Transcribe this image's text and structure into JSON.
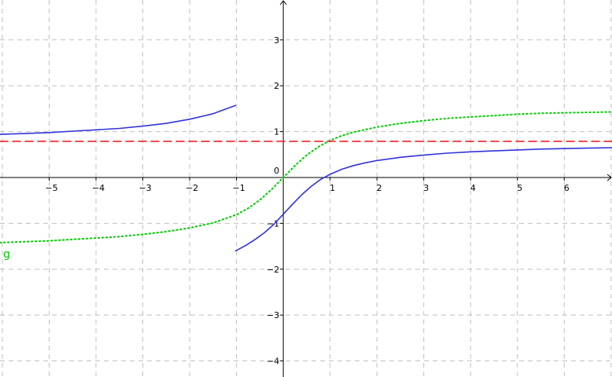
{
  "chart_data": {
    "type": "line",
    "title": "",
    "xlabel": "",
    "ylabel": "",
    "xlim": [
      -6.05,
      7.02
    ],
    "ylim": [
      -4.35,
      3.87
    ],
    "grid": true,
    "x_ticks": [
      -5,
      -4,
      -3,
      -2,
      -1,
      0,
      1,
      2,
      3,
      4,
      5,
      6
    ],
    "y_ticks": [
      -4,
      -3,
      -2,
      -1,
      1,
      2,
      3
    ],
    "x_tick_labels": [
      "−5",
      "−4",
      "−3",
      "−2",
      "−1",
      "0",
      "1",
      "2",
      "3",
      "4",
      "5",
      "6"
    ],
    "y_tick_labels": [
      "−4",
      "−3",
      "−2",
      "−1",
      "1",
      "2",
      "3"
    ],
    "origin_label": "0",
    "series": [
      {
        "style": "solid",
        "color": "#3333dd",
        "segments": [
          {
            "x": [
              -6.05,
              -5.5,
              -5,
              -4.5,
              -4,
              -3.5,
              -3,
              -2.5,
              -2,
              -1.5,
              -1.02
            ],
            "y": [
              0.94,
              0.96,
              0.98,
              1.01,
              1.04,
              1.07,
              1.12,
              1.18,
              1.27,
              1.39,
              1.57
            ]
          },
          {
            "x": [
              -1.02,
              -0.8,
              -0.6,
              -0.4,
              -0.2,
              0,
              0.2,
              0.4,
              0.6,
              0.8,
              1,
              1.25,
              1.5,
              1.75,
              2,
              2.5,
              3,
              3.5,
              4,
              4.5,
              5,
              5.5,
              6,
              6.5,
              7.02
            ],
            "y": [
              -1.6,
              -1.48,
              -1.35,
              -1.2,
              -1.02,
              -0.8,
              -0.58,
              -0.37,
              -0.19,
              -0.04,
              0.07,
              0.18,
              0.26,
              0.32,
              0.37,
              0.44,
              0.49,
              0.53,
              0.56,
              0.58,
              0.6,
              0.62,
              0.63,
              0.64,
              0.65
            ]
          }
        ]
      },
      {
        "name": "g",
        "style": "dotted",
        "color": "#00cc00",
        "label": "g",
        "segments": [
          {
            "x": [
              -6.05,
              -5.5,
              -5,
              -4.5,
              -4,
              -3.5,
              -3,
              -2.5,
              -2,
              -1.5,
              -1,
              -0.75,
              -0.5,
              -0.25,
              0,
              0.25,
              0.5,
              0.75,
              1,
              1.25,
              1.5,
              2,
              2.5,
              3,
              3.5,
              4,
              4.5,
              5,
              5.5,
              6,
              6.5,
              7.02
            ],
            "y": [
              -1.42,
              -1.4,
              -1.38,
              -1.35,
              -1.32,
              -1.29,
              -1.24,
              -1.18,
              -1.1,
              -0.99,
              -0.81,
              -0.67,
              -0.49,
              -0.26,
              0,
              0.26,
              0.49,
              0.67,
              0.81,
              0.91,
              0.99,
              1.1,
              1.18,
              1.24,
              1.29,
              1.32,
              1.35,
              1.38,
              1.4,
              1.41,
              1.42,
              1.43
            ]
          }
        ]
      },
      {
        "style": "dashed",
        "color": "#ee2222",
        "segments": [
          {
            "x": [
              -6.05,
              7.02
            ],
            "y": [
              0.79,
              0.79
            ]
          }
        ]
      }
    ]
  }
}
